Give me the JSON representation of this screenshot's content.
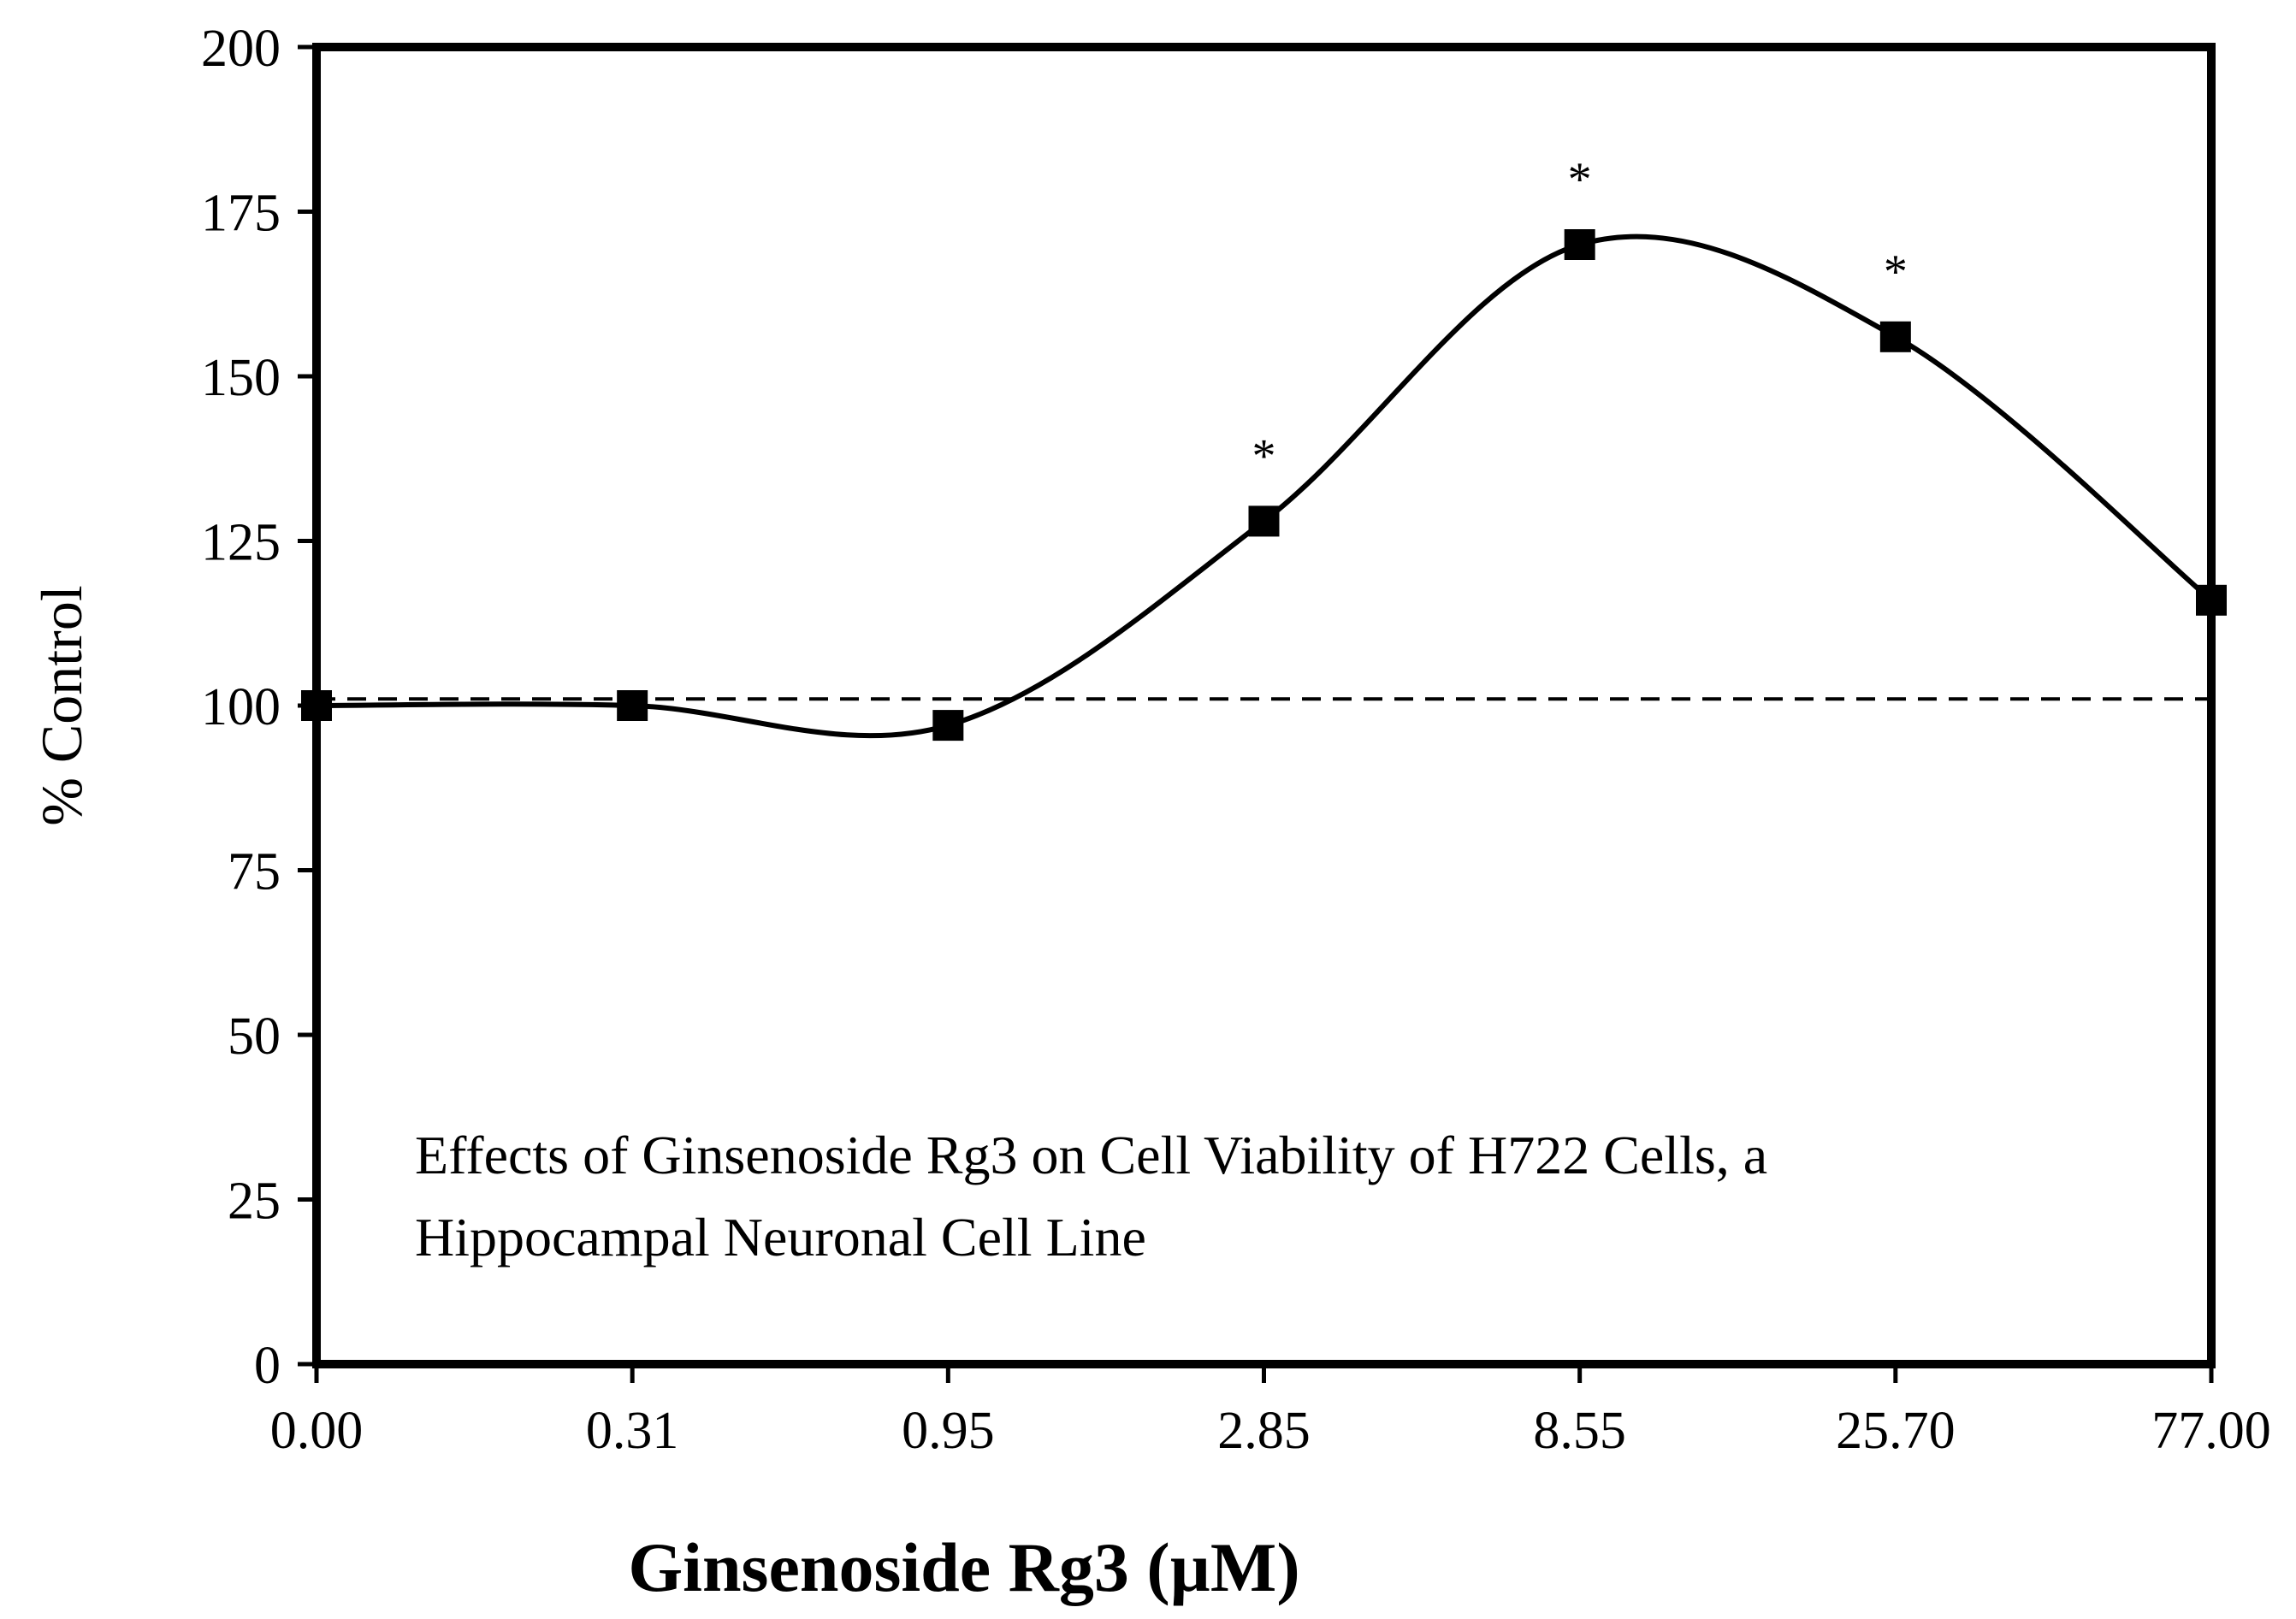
{
  "chart_data": {
    "type": "line",
    "title": "",
    "xlabel": "Ginsenoside Rg3 (µM)",
    "ylabel": "% Control",
    "categories": [
      "0.00",
      "0.31",
      "0.95",
      "2.85",
      "8.55",
      "25.70",
      "77.00"
    ],
    "series": [
      {
        "name": "Cell Viability",
        "values": [
          100,
          100,
          97,
          128,
          170,
          156,
          116
        ],
        "significant": [
          false,
          false,
          false,
          true,
          true,
          true,
          false
        ],
        "marker": "square",
        "color": "#000000"
      }
    ],
    "reference_line": {
      "y": 101,
      "style": "dashed"
    },
    "ylim": [
      0,
      200
    ],
    "yticks": [
      0,
      25,
      50,
      75,
      100,
      125,
      150,
      175,
      200
    ],
    "grid": false,
    "significance_marker": "*",
    "annotation": {
      "line1": "Effects of Ginsenoside Rg3 on Cell Viability of H722 Cells, a",
      "line2": "Hippocampal Neuronal Cell Line"
    }
  }
}
